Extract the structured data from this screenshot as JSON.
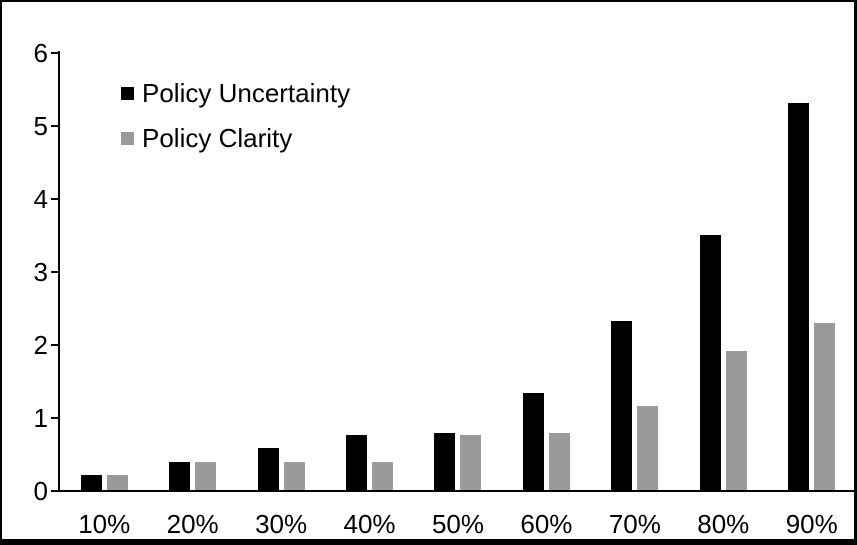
{
  "chart_data": {
    "type": "bar",
    "title": "",
    "xlabel": "",
    "ylabel": "",
    "categories": [
      "10%",
      "20%",
      "30%",
      "40%",
      "50%",
      "60%",
      "70%",
      "80%",
      "90%"
    ],
    "series": [
      {
        "name": "Policy Uncertainty",
        "color": "#000000",
        "values": [
          0.2,
          0.39,
          0.57,
          0.76,
          0.78,
          1.33,
          2.31,
          3.5,
          5.3
        ]
      },
      {
        "name": "Policy Clarity",
        "color": "#9a9a9a",
        "values": [
          0.2,
          0.39,
          0.39,
          0.39,
          0.76,
          0.78,
          1.15,
          1.9,
          2.29
        ]
      }
    ],
    "y_ticks": [
      0,
      1,
      2,
      3,
      4,
      5,
      6
    ],
    "ylim": [
      0,
      6
    ],
    "grid": false,
    "legend_position": "top-left-inside"
  },
  "colors": {
    "axis": "#000000",
    "frame": "#000000",
    "background": "#ffffff",
    "text": "#000000"
  }
}
